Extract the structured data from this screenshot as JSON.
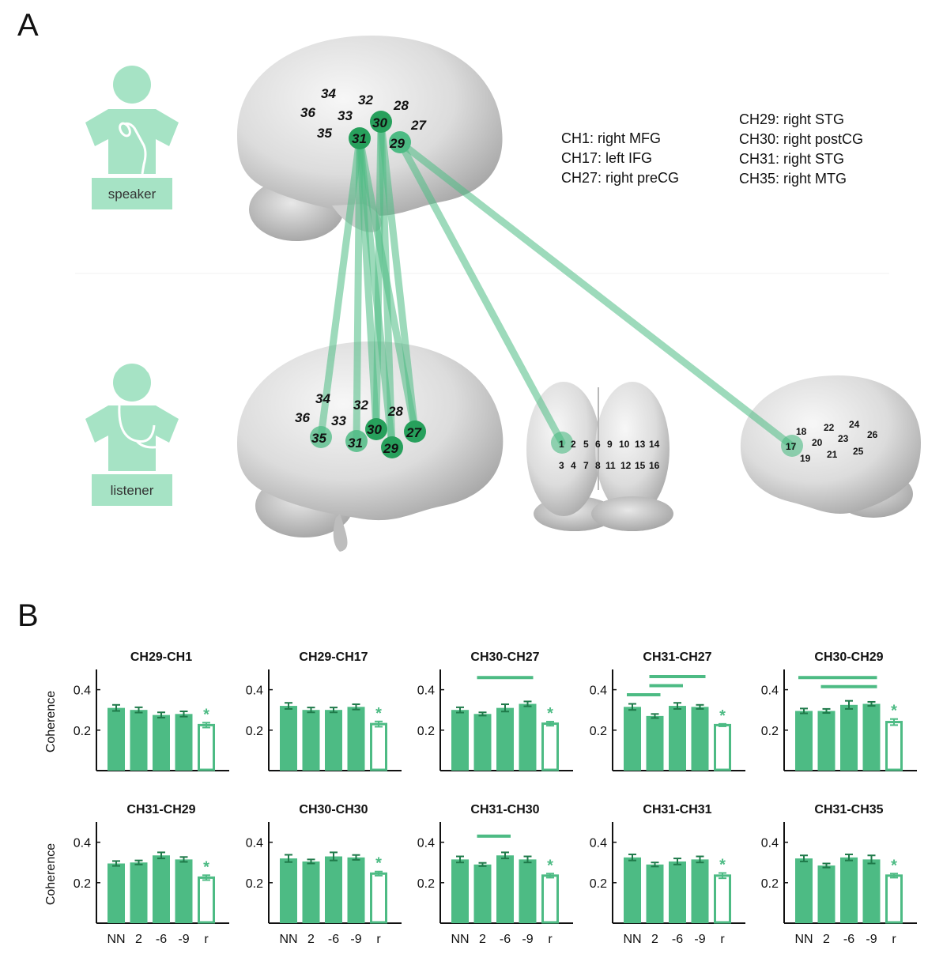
{
  "figure": {
    "panel_a": "A",
    "panel_b": "B"
  },
  "colors": {
    "green": "#4dbb84",
    "green_light": "#a8e2c4",
    "green_dark": "#27a05c",
    "person": "#a6e3c5"
  },
  "people": [
    {
      "label": "speaker",
      "icon": "speaker-person-icon"
    },
    {
      "label": "listener",
      "icon": "listener-person-icon"
    }
  ],
  "legend": {
    "left": [
      "CH1: right MFG",
      "CH17: left IFG",
      "CH27: right preCG"
    ],
    "right": [
      "CH29: right STG",
      "CH30: right postCG",
      "CH31: right STG",
      "CH35: right MTG"
    ]
  },
  "speaker_brain": {
    "labels": [
      "34",
      "32",
      "28",
      "36",
      "33",
      "30",
      "27",
      "35",
      "31",
      "29"
    ],
    "highlighted": [
      "31",
      "30",
      "29"
    ]
  },
  "listener_brain": {
    "labels": [
      "34",
      "32",
      "28",
      "36",
      "33",
      "30",
      "27",
      "35",
      "31",
      "29"
    ],
    "highlighted": [
      "35",
      "31",
      "30",
      "29",
      "27"
    ]
  },
  "frontal_brain": {
    "row1": [
      "1",
      "2",
      "5",
      "6",
      "9",
      "10",
      "13",
      "14"
    ],
    "row2": [
      "3",
      "4",
      "7",
      "8",
      "11",
      "12",
      "15",
      "16"
    ],
    "highlighted": [
      "1"
    ]
  },
  "left_brain": {
    "labels": [
      "18",
      "22",
      "24",
      "17",
      "20",
      "23",
      "26",
      "19",
      "21",
      "25"
    ],
    "highlighted": [
      "17"
    ]
  },
  "chart_data": [
    {
      "type": "bar",
      "title": "CH29-CH1",
      "categories": [
        "NN",
        "2",
        "-6",
        "-9",
        "r"
      ],
      "values": [
        0.31,
        0.3,
        0.275,
        0.28,
        0.225
      ],
      "errors": [
        0.015,
        0.013,
        0.013,
        0.013,
        0.012
      ],
      "ylabel": "Coherence",
      "yticks": [
        0.2,
        0.4
      ],
      "ylim": [
        0,
        0.5
      ],
      "significance_star": "*",
      "brackets": []
    },
    {
      "type": "bar",
      "title": "CH29-CH17",
      "categories": [
        "NN",
        "2",
        "-6",
        "-9",
        "r"
      ],
      "values": [
        0.32,
        0.3,
        0.3,
        0.315,
        0.23
      ],
      "errors": [
        0.015,
        0.012,
        0.012,
        0.013,
        0.013
      ],
      "ylabel": "",
      "yticks": [
        0.2,
        0.4
      ],
      "ylim": [
        0,
        0.5
      ],
      "significance_star": "*",
      "brackets": []
    },
    {
      "type": "bar",
      "title": "CH30-CH27",
      "categories": [
        "NN",
        "2",
        "-6",
        "-9",
        "r"
      ],
      "values": [
        0.3,
        0.28,
        0.31,
        0.33,
        0.232
      ],
      "errors": [
        0.013,
        0.008,
        0.018,
        0.012,
        0.01
      ],
      "ylabel": "",
      "yticks": [
        0.2,
        0.4
      ],
      "ylim": [
        0,
        0.5
      ],
      "significance_star": "*",
      "brackets": [
        {
          "from": 1,
          "to": 3,
          "y": 0.46
        }
      ]
    },
    {
      "type": "bar",
      "title": "CH31-CH27",
      "categories": [
        "NN",
        "2",
        "-6",
        "-9",
        "r"
      ],
      "values": [
        0.315,
        0.27,
        0.32,
        0.315,
        0.225
      ],
      "errors": [
        0.015,
        0.01,
        0.015,
        0.01,
        0.006
      ],
      "ylabel": "",
      "yticks": [
        0.2,
        0.4
      ],
      "ylim": [
        0,
        0.5
      ],
      "significance_star": "*",
      "brackets": [
        {
          "from": 0,
          "to": 1,
          "y": 0.375
        },
        {
          "from": 1,
          "to": 2,
          "y": 0.42
        },
        {
          "from": 1,
          "to": 3,
          "y": 0.465
        }
      ]
    },
    {
      "type": "bar",
      "title": "CH30-CH29",
      "categories": [
        "NN",
        "2",
        "-6",
        "-9",
        "r"
      ],
      "values": [
        0.295,
        0.295,
        0.325,
        0.33,
        0.24
      ],
      "errors": [
        0.012,
        0.01,
        0.02,
        0.01,
        0.015
      ],
      "ylabel": "",
      "yticks": [
        0.2,
        0.4
      ],
      "ylim": [
        0,
        0.5
      ],
      "significance_star": "*",
      "brackets": [
        {
          "from": 0,
          "to": 3,
          "y": 0.46
        },
        {
          "from": 1,
          "to": 3,
          "y": 0.415
        }
      ]
    },
    {
      "type": "bar",
      "title": "CH31-CH29",
      "categories": [
        "NN",
        "2",
        "-6",
        "-9",
        "r"
      ],
      "values": [
        0.295,
        0.3,
        0.335,
        0.315,
        0.225
      ],
      "errors": [
        0.012,
        0.01,
        0.015,
        0.012,
        0.012
      ],
      "ylabel": "Coherence",
      "yticks": [
        0.2,
        0.4
      ],
      "ylim": [
        0,
        0.5
      ],
      "significance_star": "*",
      "brackets": []
    },
    {
      "type": "bar",
      "title": "CH30-CH30",
      "categories": [
        "NN",
        "2",
        "-6",
        "-9",
        "r"
      ],
      "values": [
        0.32,
        0.305,
        0.33,
        0.325,
        0.245
      ],
      "errors": [
        0.018,
        0.01,
        0.02,
        0.012,
        0.01
      ],
      "ylabel": "",
      "yticks": [
        0.2,
        0.4
      ],
      "ylim": [
        0,
        0.5
      ],
      "significance_star": "*",
      "brackets": []
    },
    {
      "type": "bar",
      "title": "CH31-CH30",
      "categories": [
        "NN",
        "2",
        "-6",
        "-9",
        "r"
      ],
      "values": [
        0.315,
        0.29,
        0.335,
        0.315,
        0.235
      ],
      "errors": [
        0.015,
        0.008,
        0.015,
        0.015,
        0.01
      ],
      "ylabel": "",
      "yticks": [
        0.2,
        0.4
      ],
      "ylim": [
        0,
        0.5
      ],
      "significance_star": "*",
      "brackets": [
        {
          "from": 1,
          "to": 2,
          "y": 0.43
        }
      ]
    },
    {
      "type": "bar",
      "title": "CH31-CH31",
      "categories": [
        "NN",
        "2",
        "-6",
        "-9",
        "r"
      ],
      "values": [
        0.325,
        0.29,
        0.305,
        0.315,
        0.235
      ],
      "errors": [
        0.015,
        0.01,
        0.015,
        0.015,
        0.013
      ],
      "ylabel": "",
      "yticks": [
        0.2,
        0.4
      ],
      "ylim": [
        0,
        0.5
      ],
      "significance_star": "*",
      "brackets": []
    },
    {
      "type": "bar",
      "title": "CH31-CH35",
      "categories": [
        "NN",
        "2",
        "-6",
        "-9",
        "r"
      ],
      "values": [
        0.32,
        0.285,
        0.325,
        0.315,
        0.235
      ],
      "errors": [
        0.015,
        0.01,
        0.015,
        0.02,
        0.01
      ],
      "ylabel": "",
      "yticks": [
        0.2,
        0.4
      ],
      "ylim": [
        0,
        0.5
      ],
      "significance_star": "*",
      "brackets": []
    }
  ]
}
